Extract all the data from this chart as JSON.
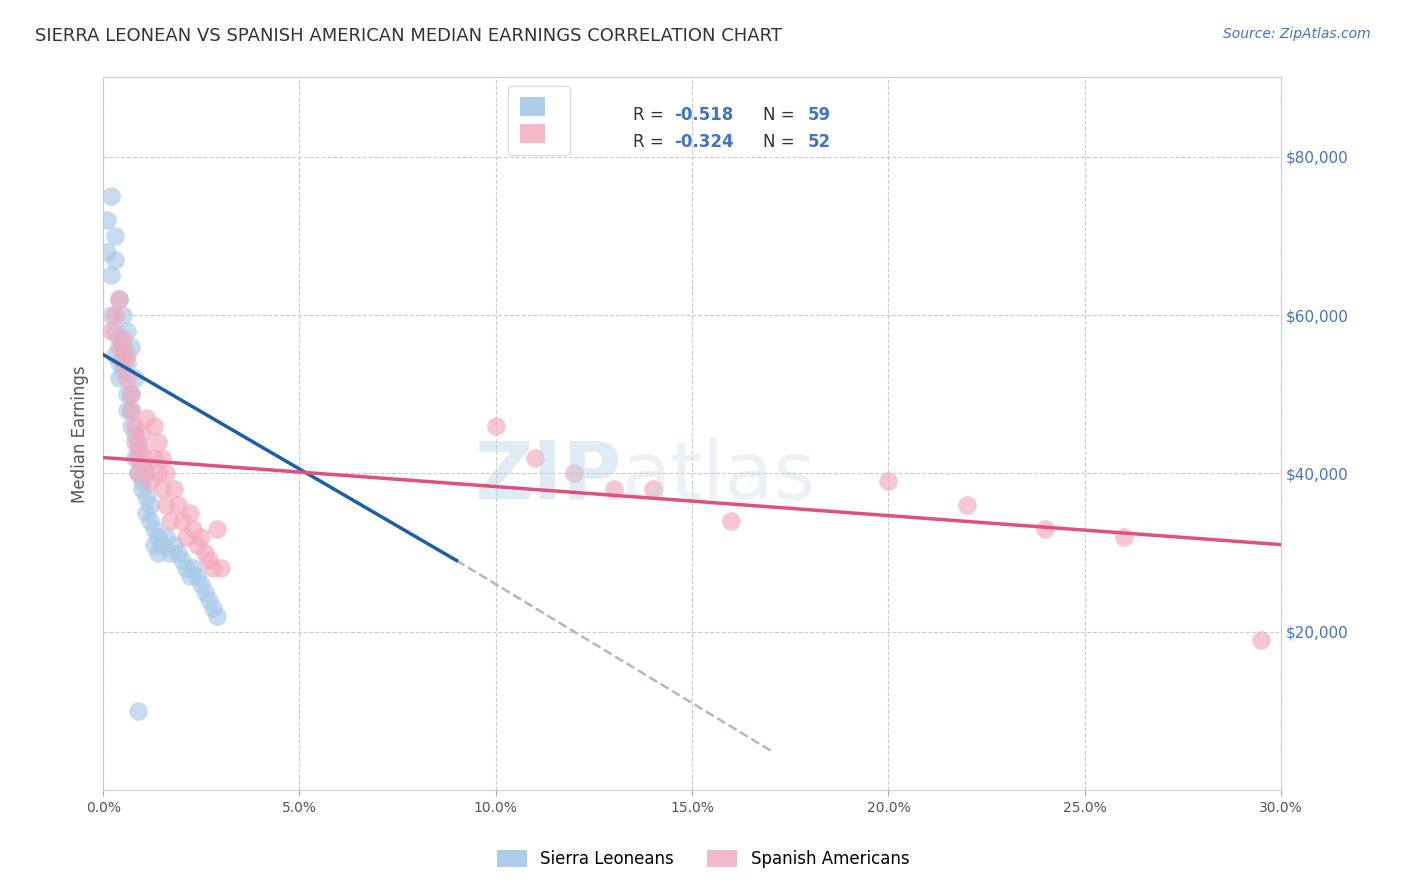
{
  "title": "SIERRA LEONEAN VS SPANISH AMERICAN MEDIAN EARNINGS CORRELATION CHART",
  "source": "Source: ZipAtlas.com",
  "ylabel": "Median Earnings",
  "y_tick_labels": [
    "$20,000",
    "$40,000",
    "$60,000",
    "$80,000"
  ],
  "y_tick_values": [
    20000,
    40000,
    60000,
    80000
  ],
  "x_ticks": [
    0.0,
    0.05,
    0.1,
    0.15,
    0.2,
    0.25,
    0.3
  ],
  "x_tick_labels": [
    "0.0%",
    "5.0%",
    "10.0%",
    "15.0%",
    "20.0%",
    "25.0%",
    "30.0%"
  ],
  "x_range": [
    0.0,
    0.3
  ],
  "y_range": [
    0,
    90000
  ],
  "blue_color": "#a8c8e8",
  "pink_color": "#f4a8bc",
  "blue_line_color": "#1a5fa8",
  "pink_line_color": "#e0507a",
  "dash_color": "#b0b8c8",
  "blue_scatter_x": [
    0.001,
    0.002,
    0.001,
    0.003,
    0.002,
    0.003,
    0.004,
    0.002,
    0.003,
    0.004,
    0.003,
    0.004,
    0.005,
    0.004,
    0.005,
    0.005,
    0.006,
    0.005,
    0.006,
    0.006,
    0.007,
    0.006,
    0.007,
    0.007,
    0.008,
    0.007,
    0.008,
    0.009,
    0.008,
    0.009,
    0.01,
    0.009,
    0.01,
    0.011,
    0.01,
    0.011,
    0.012,
    0.011,
    0.012,
    0.013,
    0.014,
    0.013,
    0.014,
    0.015,
    0.016,
    0.017,
    0.018,
    0.019,
    0.02,
    0.021,
    0.022,
    0.023,
    0.024,
    0.025,
    0.026,
    0.027,
    0.028,
    0.029,
    0.009
  ],
  "blue_scatter_y": [
    72000,
    75000,
    68000,
    70000,
    65000,
    67000,
    62000,
    60000,
    58000,
    57000,
    55000,
    54000,
    56000,
    52000,
    53000,
    60000,
    58000,
    55000,
    50000,
    48000,
    56000,
    54000,
    50000,
    46000,
    52000,
    48000,
    45000,
    44000,
    42000,
    43000,
    41000,
    40000,
    39000,
    40000,
    38000,
    37000,
    36000,
    35000,
    34000,
    33000,
    32000,
    31000,
    30000,
    31000,
    32000,
    30000,
    31000,
    30000,
    29000,
    28000,
    27000,
    28000,
    27000,
    26000,
    25000,
    24000,
    23000,
    22000,
    10000
  ],
  "pink_scatter_x": [
    0.002,
    0.003,
    0.004,
    0.004,
    0.005,
    0.005,
    0.006,
    0.006,
    0.007,
    0.007,
    0.008,
    0.008,
    0.009,
    0.009,
    0.01,
    0.01,
    0.011,
    0.011,
    0.012,
    0.013,
    0.013,
    0.014,
    0.014,
    0.015,
    0.015,
    0.016,
    0.016,
    0.017,
    0.018,
    0.019,
    0.02,
    0.021,
    0.022,
    0.023,
    0.024,
    0.025,
    0.026,
    0.027,
    0.028,
    0.029,
    0.03,
    0.1,
    0.11,
    0.12,
    0.13,
    0.14,
    0.16,
    0.2,
    0.22,
    0.24,
    0.26,
    0.295
  ],
  "pink_scatter_y": [
    58000,
    60000,
    56000,
    62000,
    54000,
    57000,
    55000,
    52000,
    50000,
    48000,
    46000,
    44000,
    42000,
    40000,
    43000,
    45000,
    41000,
    47000,
    39000,
    46000,
    42000,
    40000,
    44000,
    38000,
    42000,
    36000,
    40000,
    34000,
    38000,
    36000,
    34000,
    32000,
    35000,
    33000,
    31000,
    32000,
    30000,
    29000,
    28000,
    33000,
    28000,
    46000,
    42000,
    40000,
    38000,
    38000,
    34000,
    39000,
    36000,
    33000,
    32000,
    19000
  ],
  "blue_line_x0": 0.0,
  "blue_line_x1": 0.09,
  "blue_line_y0": 55000,
  "blue_line_y1": 29000,
  "dash_line_x0": 0.09,
  "dash_line_x1": 0.17,
  "dash_line_y0": 29000,
  "dash_line_y1": 5000,
  "pink_line_x0": 0.0,
  "pink_line_x1": 0.3,
  "pink_line_y0": 42000,
  "pink_line_y1": 31000
}
